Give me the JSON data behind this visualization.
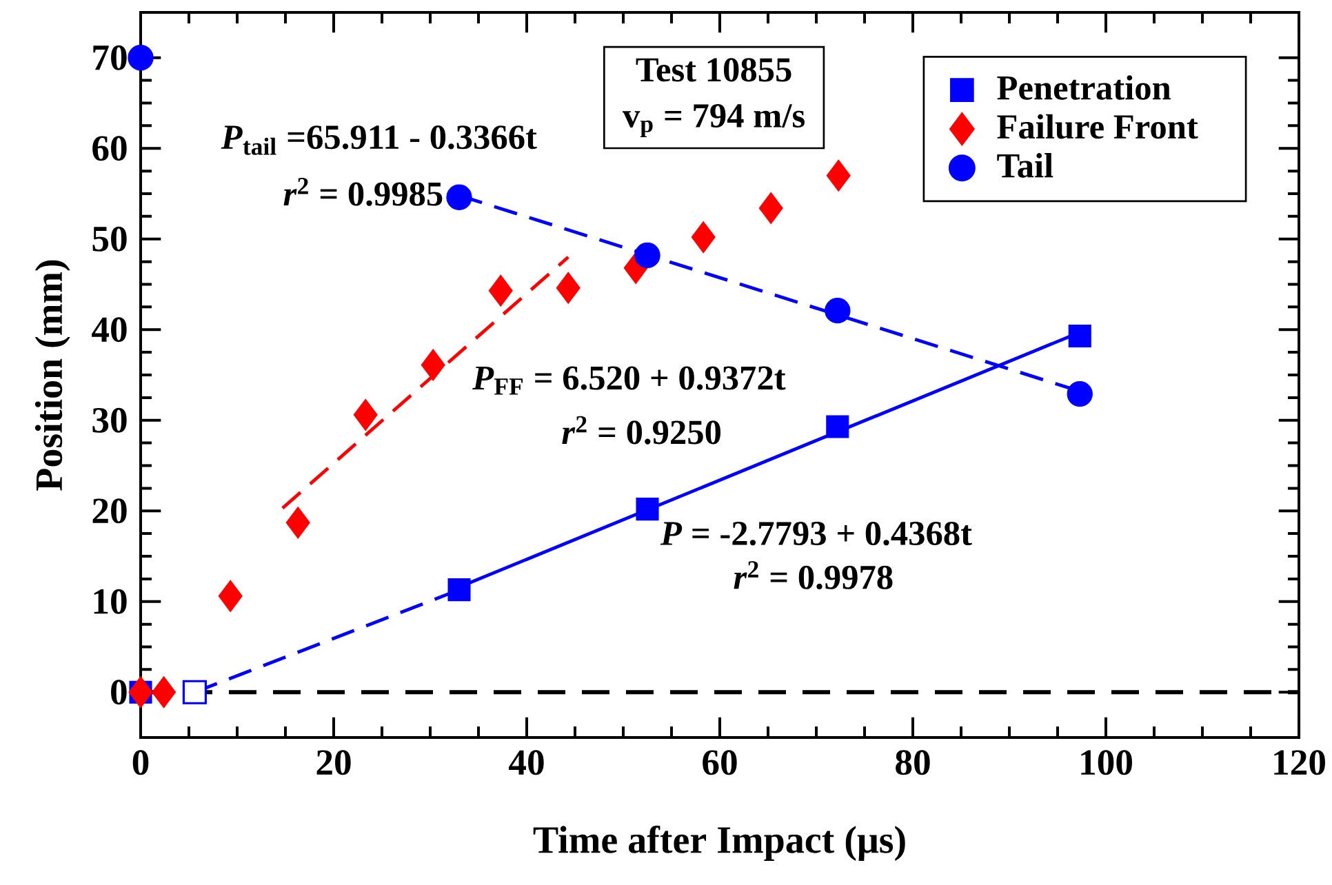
{
  "chart_data": {
    "type": "scatter",
    "xlabel": "Time after Impact (μs)",
    "ylabel": "Position (mm)",
    "xlim": [
      0,
      120
    ],
    "ylim": [
      -5,
      75
    ],
    "xticks": [
      0,
      20,
      40,
      60,
      80,
      100,
      120
    ],
    "yticks": [
      0,
      10,
      20,
      30,
      40,
      50,
      60,
      70
    ],
    "grid": false,
    "legend": "top right",
    "ref_lines": [
      {
        "axis": "y",
        "value": 0,
        "color": "#000000",
        "line_style": "dashed"
      }
    ],
    "series": [
      {
        "type": "line",
        "color": "#0000ff",
        "marker": "none",
        "line_style": "dashed",
        "x": [
          5.6,
          33
        ],
        "values": [
          0,
          11.3
        ]
      },
      {
        "type": "line",
        "color": "#0000ff",
        "marker": "none",
        "line_style": "solid",
        "x": [
          33,
          97.3
        ],
        "values": [
          11.6,
          39.7
        ]
      },
      {
        "type": "line",
        "color": "#ff0000",
        "marker": "none",
        "line_style": "dashed",
        "x": [
          14.7,
          44.3
        ],
        "values": [
          20.3,
          48.0
        ]
      },
      {
        "type": "line",
        "color": "#0000ff",
        "marker": "none",
        "line_style": "dashed",
        "x": [
          33,
          97.3
        ],
        "values": [
          54.8,
          33.2
        ]
      },
      {
        "name": "Penetration",
        "color": "#0000ff",
        "marker": "square",
        "x": [
          0,
          33,
          52.5,
          72.2,
          97.3
        ],
        "values": [
          0,
          11.3,
          20.2,
          29.3,
          39.3
        ]
      },
      {
        "color": "#ffffff",
        "marker": "square",
        "x": [
          5.6
        ],
        "values": [
          0
        ]
      },
      {
        "name": "Failure Front",
        "color": "#ff0000",
        "marker": "diamond",
        "x": [
          0,
          2.4,
          9.3,
          16.3,
          23.3,
          30.3,
          37.3,
          44.3,
          51.3,
          58.3,
          65.3,
          72.3
        ],
        "values": [
          0,
          0,
          10.6,
          18.7,
          30.6,
          36.1,
          44.3,
          44.6,
          46.8,
          50.2,
          53.4,
          57.0
        ]
      },
      {
        "name": "Tail",
        "color": "#0000ff",
        "marker": "circle",
        "x": [
          0,
          33,
          52.5,
          72.2,
          97.3
        ],
        "values": [
          70,
          54.6,
          48.2,
          42.1,
          32.9
        ]
      }
    ],
    "annotations": [
      "Test 10855",
      "v$_{p}$ = 794 m/s",
      "*P*$_{tail}$ =65.911 - 0.3366t",
      "*r*$^{2}$ = 0.9985",
      "*P*$_{FF}$ = 6.520 + 0.9372t",
      "*r*$^{2}$ = 0.9250",
      "*P* = -2.7793 + 0.4368t",
      "*r*$^{2}$ = 0.9978"
    ]
  }
}
